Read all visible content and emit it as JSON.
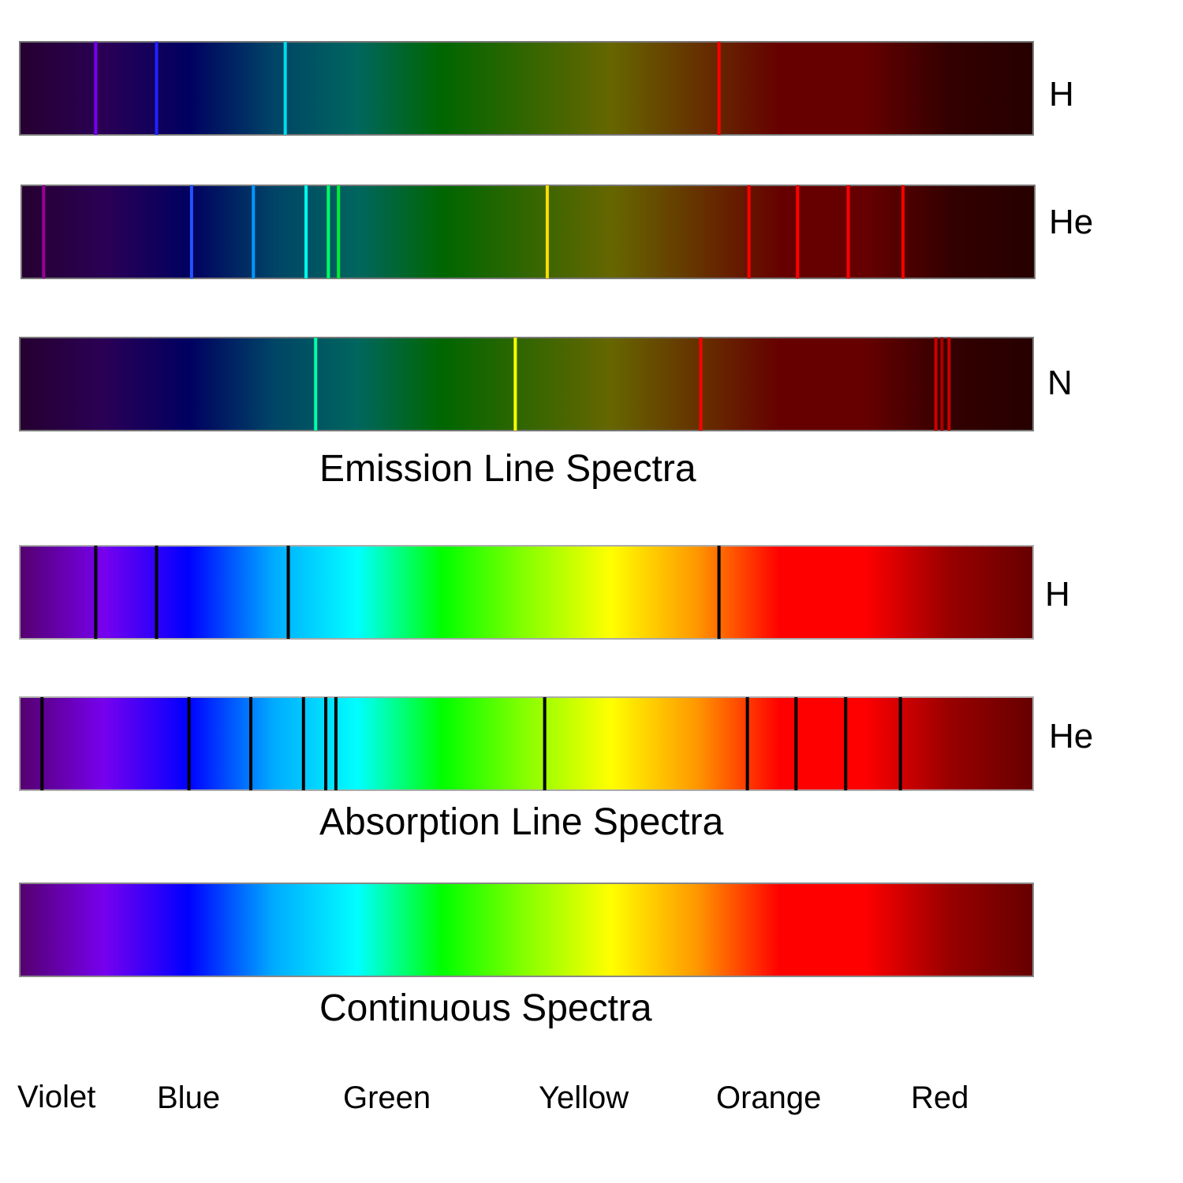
{
  "palettes": {
    "dark": [
      "#260030",
      "#2a0055",
      "#000060",
      "#004466",
      "#00665e",
      "#006600",
      "#336600",
      "#666600",
      "#663300",
      "#660000",
      "#660000",
      "#330000",
      "#260000"
    ],
    "bright": [
      "#55006e",
      "#7700ee",
      "#0000ff",
      "#00aaff",
      "#00ffff",
      "#00ff00",
      "#88ff00",
      "#ffff00",
      "#ff9900",
      "#ff0000",
      "#ff0000",
      "#990000",
      "#660000"
    ]
  },
  "emission": {
    "title": "Emission Line Spectra",
    "rows": [
      {
        "element": "H",
        "lines": [
          {
            "pos": 0.075,
            "color": "#7700ee"
          },
          {
            "pos": 0.135,
            "color": "#2222ff"
          },
          {
            "pos": 0.262,
            "color": "#00ddee"
          },
          {
            "pos": 0.69,
            "color": "#ff0000"
          }
        ]
      },
      {
        "element": "He",
        "lines": [
          {
            "pos": 0.022,
            "color": "#990099"
          },
          {
            "pos": 0.168,
            "color": "#2255ff"
          },
          {
            "pos": 0.229,
            "color": "#0099ff"
          },
          {
            "pos": 0.281,
            "color": "#00ffee"
          },
          {
            "pos": 0.303,
            "color": "#00ff66"
          },
          {
            "pos": 0.313,
            "color": "#00ee33"
          },
          {
            "pos": 0.519,
            "color": "#ffdd00"
          },
          {
            "pos": 0.718,
            "color": "#ff0000"
          },
          {
            "pos": 0.766,
            "color": "#ff0000"
          },
          {
            "pos": 0.816,
            "color": "#ff0000"
          },
          {
            "pos": 0.87,
            "color": "#ff0000"
          }
        ]
      },
      {
        "element": "N",
        "lines": [
          {
            "pos": 0.292,
            "color": "#00ffaa"
          },
          {
            "pos": 0.489,
            "color": "#ffff00"
          },
          {
            "pos": 0.672,
            "color": "#ff0000"
          },
          {
            "pos": 0.904,
            "color": "#cc0000"
          },
          {
            "pos": 0.91,
            "color": "#aa0000"
          },
          {
            "pos": 0.917,
            "color": "#cc0000"
          }
        ]
      }
    ]
  },
  "absorption": {
    "title": "Absorption Line Spectra",
    "rows": [
      {
        "element": "H",
        "lines": [
          0.075,
          0.135,
          0.265,
          0.69
        ]
      },
      {
        "element": "He",
        "lines": [
          0.022,
          0.167,
          0.228,
          0.28,
          0.302,
          0.312,
          0.518,
          0.718,
          0.766,
          0.815,
          0.869
        ]
      }
    ]
  },
  "continuous": {
    "title": "Continuous Spectra"
  },
  "color_labels": [
    "Violet",
    "Blue",
    "Green",
    "Yellow",
    "Orange",
    "Red"
  ]
}
